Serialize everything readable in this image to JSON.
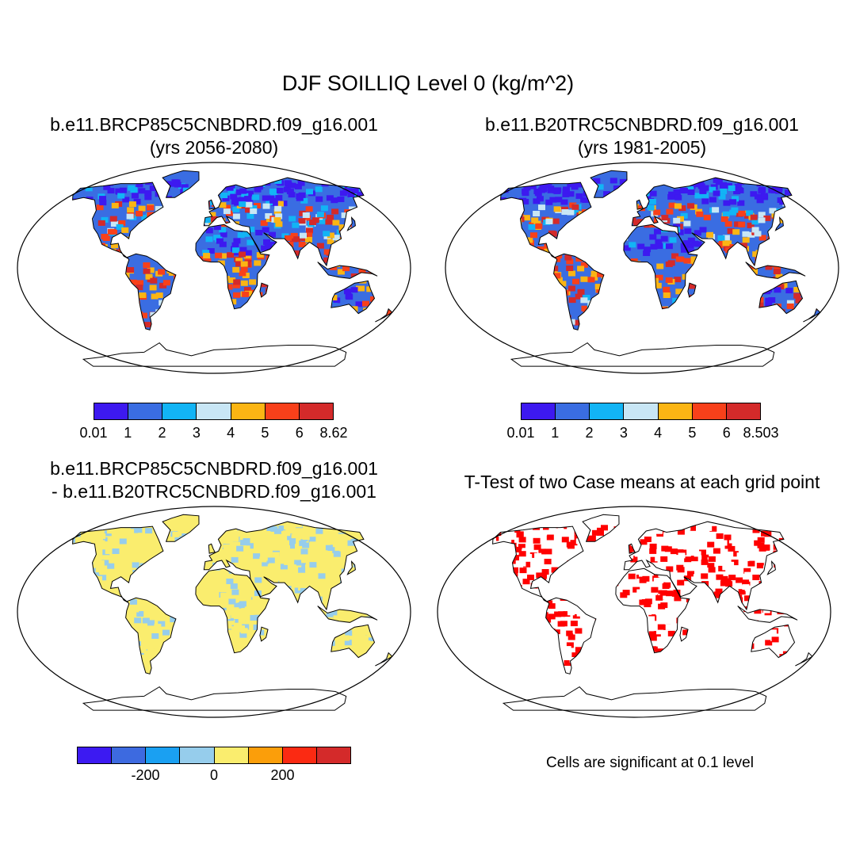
{
  "figure": {
    "title": "DJF SOILLIQ Level 0 (kg/m^2)"
  },
  "panels": [
    {
      "title_line1": "b.e11.BRCP85C5CNBDRD.f09_g16.001",
      "title_line2": "(yrs 2056-2080)",
      "colorbar": {
        "colors": [
          "#3d19f0",
          "#3a6de2",
          "#12b4f5",
          "#c8e6f5",
          "#fbb514",
          "#f8401a",
          "#d42a2a"
        ],
        "tick_labels": [
          "0.01",
          "1",
          "2",
          "3",
          "4",
          "5",
          "6",
          "8.62"
        ]
      }
    },
    {
      "title_line1": "b.e11.B20TRC5CNBDRD.f09_g16.001",
      "title_line2": "(yrs 1981-2005)",
      "colorbar": {
        "colors": [
          "#3d19f0",
          "#3a6de2",
          "#12b4f5",
          "#c8e6f5",
          "#fbb514",
          "#f8401a",
          "#d42a2a"
        ],
        "tick_labels": [
          "0.01",
          "1",
          "2",
          "3",
          "4",
          "5",
          "6",
          "8.503"
        ]
      }
    },
    {
      "title_line1": "b.e11.BRCP85C5CNBDRD.f09_g16.001",
      "title_line2": "- b.e11.B20TRC5CNBDRD.f09_g16.001",
      "colorbar": {
        "colors": [
          "#3c1af2",
          "#3d6ae0",
          "#1aa0f2",
          "#96cdec",
          "#faed6e",
          "#fb9e0a",
          "#fb2a12",
          "#d42a2a"
        ],
        "tick_labels": [
          "-200",
          "0",
          "200"
        ]
      }
    },
    {
      "title": "T-Test of two Case means at each grid point",
      "note": "Cells are significant at 0.1 level"
    }
  ]
}
